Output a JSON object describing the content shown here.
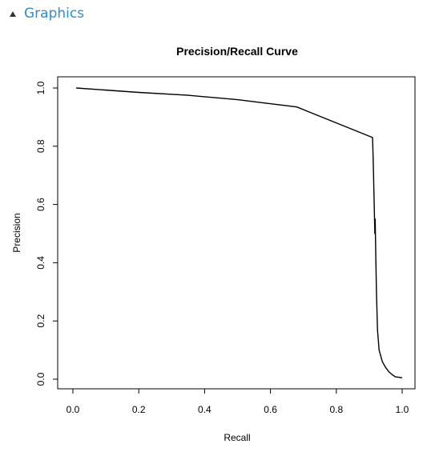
{
  "section": {
    "title": "Graphics",
    "collapse_icon": "triangle-up-icon"
  },
  "chart_data": {
    "type": "line",
    "title": "Precision/Recall Curve",
    "xlabel": "Recall",
    "ylabel": "Precision",
    "xlim": [
      0,
      1
    ],
    "ylim": [
      0,
      1
    ],
    "x_ticks": [
      "0.0",
      "0.2",
      "0.4",
      "0.6",
      "0.8",
      "1.0"
    ],
    "y_ticks": [
      "0.0",
      "0.2",
      "0.4",
      "0.6",
      "0.8",
      "1.0"
    ],
    "grid": false,
    "line_color": "#000000",
    "series": [
      {
        "x": [
          0.01,
          0.2,
          0.35,
          0.5,
          0.68,
          0.91,
          0.912,
          0.915,
          0.917,
          0.918,
          0.92,
          0.922,
          0.925,
          0.93,
          0.94,
          0.95,
          0.96,
          0.97,
          0.98,
          1.0
        ],
        "y": [
          1.0,
          0.985,
          0.975,
          0.96,
          0.935,
          0.83,
          0.76,
          0.6,
          0.5,
          0.55,
          0.42,
          0.3,
          0.17,
          0.1,
          0.06,
          0.04,
          0.025,
          0.015,
          0.008,
          0.005
        ]
      }
    ]
  }
}
